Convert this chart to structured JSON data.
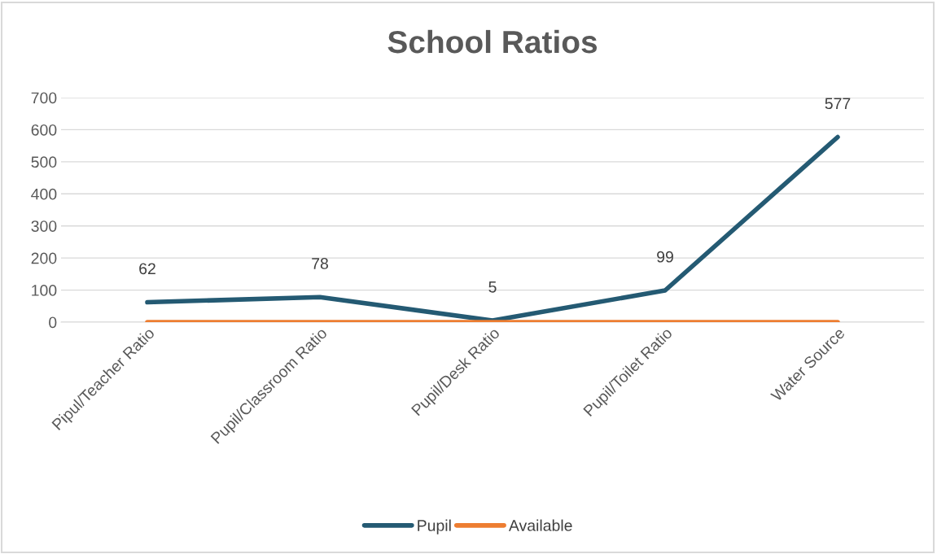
{
  "chart_data": {
    "type": "line",
    "title": "School Ratios",
    "categories": [
      "Pipul/Teacher Ratio",
      "Pupil/Classroom Ratio",
      "Pupil/Desk Ratio",
      "Pupil/Toilet Ratio",
      "Water Source"
    ],
    "series": [
      {
        "name": "Pupil",
        "color": "#245a73",
        "values": [
          62,
          78,
          5,
          99,
          577
        ],
        "value_labels": [
          "62",
          "78",
          "5",
          "99",
          "577"
        ]
      },
      {
        "name": "Available",
        "color": "#ed7d31",
        "values": [
          0,
          0,
          0,
          0,
          0
        ]
      }
    ],
    "ylim": [
      0,
      700
    ],
    "yticks": [
      0,
      100,
      200,
      300,
      400,
      500,
      600,
      700
    ],
    "grid": "y",
    "legend": "bottom",
    "marker": "none",
    "line_style": "solid"
  }
}
